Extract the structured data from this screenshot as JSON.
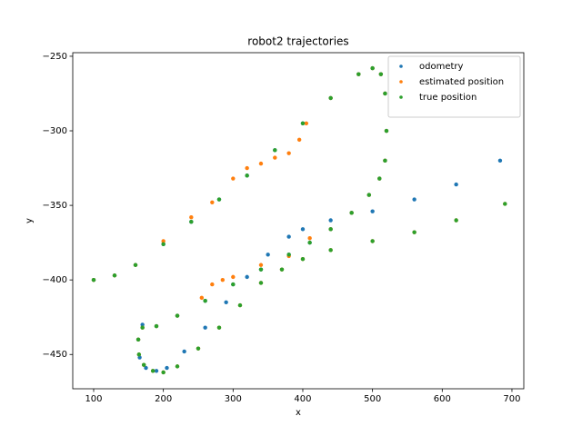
{
  "chart_data": {
    "type": "scatter",
    "title": "robot2 trajectories",
    "x_label": "x",
    "y_label": "y",
    "xlim": [
      70,
      717
    ],
    "ylim": [
      -473,
      -247.6
    ],
    "xticks": [
      100,
      200,
      300,
      400,
      500,
      600,
      700
    ],
    "yticks": [
      {
        "value": -450,
        "label": "−450"
      },
      {
        "value": -400,
        "label": "−400"
      },
      {
        "value": -350,
        "label": "−350"
      },
      {
        "value": -300,
        "label": "−300"
      },
      {
        "value": -250,
        "label": "−250"
      }
    ],
    "legend": "upper right",
    "series": [
      {
        "name": "odometry",
        "color": "#1f77b4",
        "x": [
          100,
          130,
          160,
          200,
          240,
          280,
          320,
          360,
          400,
          440,
          480,
          500,
          512,
          518,
          520,
          518,
          510,
          495,
          470,
          440,
          410,
          380,
          340,
          300,
          260,
          220,
          190,
          170,
          164,
          166,
          175,
          190,
          205,
          230,
          260,
          290,
          320,
          350,
          380,
          400,
          440,
          500,
          560,
          620,
          683
        ],
        "values": [
          -400,
          -397,
          -390,
          -376,
          -361,
          -346,
          -330,
          -313,
          -295,
          -278,
          -262,
          -258,
          -262,
          -275,
          -300,
          -320,
          -332,
          -343,
          -355,
          -366,
          -375,
          -383,
          -393,
          -403,
          -414,
          -424,
          -431,
          -430,
          -440,
          -452,
          -459,
          -461,
          -459,
          -448,
          -432,
          -415,
          -398,
          -383,
          -371,
          -366,
          -360,
          -354,
          -346,
          -336,
          -320
        ]
      },
      {
        "name": "estimated position",
        "color": "#ff7f0e",
        "x": [
          100,
          130,
          160,
          200,
          240,
          270,
          300,
          320,
          340,
          360,
          380,
          395,
          405,
          440,
          480,
          500,
          512,
          518,
          520,
          518,
          510,
          495,
          470,
          440,
          410,
          380,
          340,
          300,
          285,
          270,
          255,
          220,
          190,
          170,
          164,
          165,
          172,
          185,
          200,
          220,
          250,
          280,
          310,
          340,
          370,
          400,
          440,
          500,
          560,
          620,
          690
        ],
        "values": [
          -400,
          -397,
          -390,
          -374,
          -358,
          -348,
          -332,
          -325,
          -322,
          -318,
          -315,
          -306,
          -295,
          -278,
          -262,
          -258,
          -262,
          -275,
          -300,
          -320,
          -332,
          -343,
          -355,
          -366,
          -372,
          -384,
          -390,
          -398,
          -400,
          -403,
          -412,
          -424,
          -431,
          -432,
          -440,
          -450,
          -457,
          -461,
          -462,
          -458,
          -446,
          -432,
          -417,
          -402,
          -393,
          -386,
          -380,
          -374,
          -368,
          -360,
          -349
        ]
      },
      {
        "name": "true position",
        "color": "#2ca02c",
        "x": [
          100,
          130,
          160,
          200,
          240,
          280,
          320,
          360,
          400,
          440,
          480,
          500,
          512,
          518,
          520,
          518,
          510,
          495,
          470,
          440,
          410,
          380,
          340,
          300,
          260,
          220,
          190,
          170,
          164,
          165,
          172,
          185,
          200,
          220,
          250,
          280,
          310,
          340,
          370,
          400,
          440,
          500,
          560,
          620,
          690
        ],
        "values": [
          -400,
          -397,
          -390,
          -376,
          -361,
          -346,
          -330,
          -313,
          -295,
          -278,
          -262,
          -258,
          -262,
          -275,
          -300,
          -320,
          -332,
          -343,
          -355,
          -366,
          -375,
          -383,
          -393,
          -403,
          -414,
          -424,
          -431,
          -432,
          -440,
          -450,
          -457,
          -461,
          -462,
          -458,
          -446,
          -432,
          -417,
          -402,
          -393,
          -386,
          -380,
          -374,
          -368,
          -360,
          -349
        ]
      }
    ]
  }
}
